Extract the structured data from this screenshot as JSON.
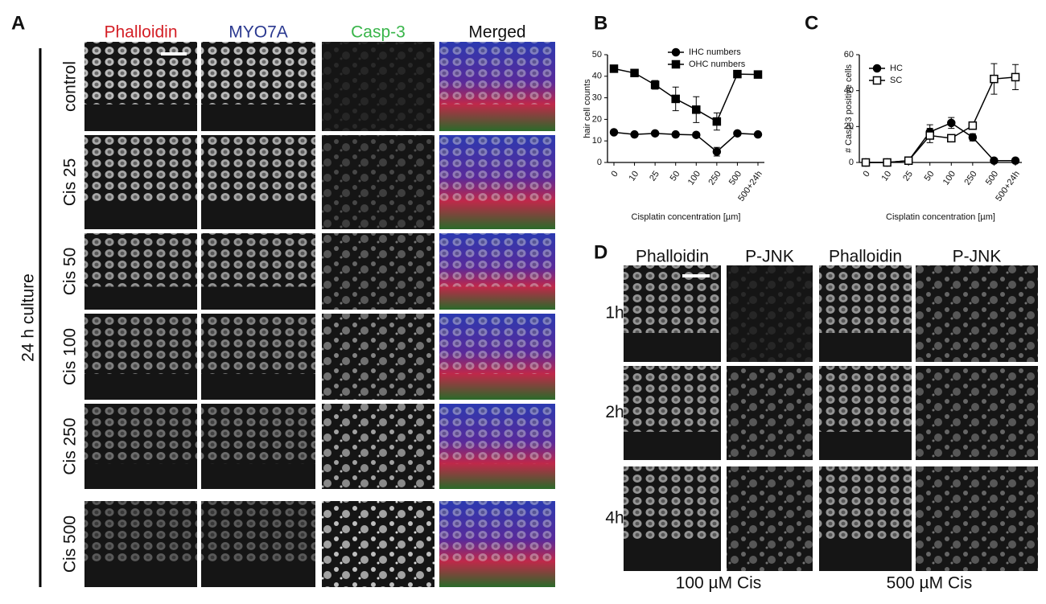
{
  "panel_a": {
    "letter": "A",
    "columns": [
      "Phalloidin",
      "MYO7A",
      "Casp-3",
      "Merged"
    ],
    "column_colors": [
      "#d42027",
      "#2b3990",
      "#39b54a",
      "#111111"
    ],
    "rows": [
      "control",
      "Cis 25",
      "Cis 50",
      "Cis 100",
      "Cis 250",
      "Cis 500"
    ],
    "side_label": "24 h culture"
  },
  "chart_data": [
    {
      "type": "line",
      "label": "B",
      "ylabel": "hair cell counts",
      "xlabel": "Cisplatin concentration [µm]",
      "categories": [
        "0",
        "10",
        "25",
        "50",
        "100",
        "250",
        "500",
        "500+24h"
      ],
      "series": [
        {
          "name": "IHC numbers",
          "marker": "circle",
          "filled": true,
          "color": "#000000",
          "values": [
            14,
            13,
            13.5,
            13,
            12.8,
            5,
            13.5,
            13
          ],
          "errors": [
            0.5,
            0.3,
            0.5,
            0.5,
            0.5,
            2,
            0.5,
            0.5
          ]
        },
        {
          "name": "OHC numbers",
          "marker": "square",
          "filled": true,
          "color": "#000000",
          "values": [
            43.5,
            41.5,
            36,
            29.5,
            24.5,
            19,
            41,
            40.8
          ],
          "errors": [
            1,
            0.8,
            2,
            5.5,
            6,
            4,
            1.5,
            0.5
          ]
        }
      ],
      "ylim": [
        0,
        50
      ],
      "yticks": [
        0,
        10,
        20,
        30,
        40,
        50
      ]
    },
    {
      "type": "line",
      "label": "C",
      "ylabel": "# Casp-3 positive cells",
      "xlabel": "Cisplatin concentration [µm]",
      "categories": [
        "0",
        "10",
        "25",
        "50",
        "100",
        "250",
        "500",
        "500+24h"
      ],
      "series": [
        {
          "name": "HC",
          "marker": "circle",
          "filled": true,
          "color": "#000000",
          "values": [
            0,
            0,
            1,
            17,
            22,
            14,
            1,
            1
          ],
          "errors": [
            0,
            0,
            0.5,
            4,
            3,
            2,
            0.5,
            0.5
          ]
        },
        {
          "name": "SC",
          "marker": "square",
          "filled": false,
          "color": "#000000",
          "values": [
            0,
            0,
            1,
            15,
            13.5,
            20.5,
            46.5,
            47.5
          ],
          "errors": [
            0,
            0,
            0.5,
            4,
            2,
            1.5,
            8.5,
            7
          ]
        }
      ],
      "ylim": [
        0,
        60
      ],
      "yticks": [
        0,
        20,
        40,
        60
      ]
    }
  ],
  "panel_d": {
    "letter": "D",
    "columns": [
      "Phalloidin",
      "P-JNK",
      "Phalloidin",
      "P-JNK"
    ],
    "rows": [
      "1h",
      "2h",
      "4h"
    ],
    "groups": [
      "100 µM Cis",
      "500 µM Cis"
    ]
  }
}
